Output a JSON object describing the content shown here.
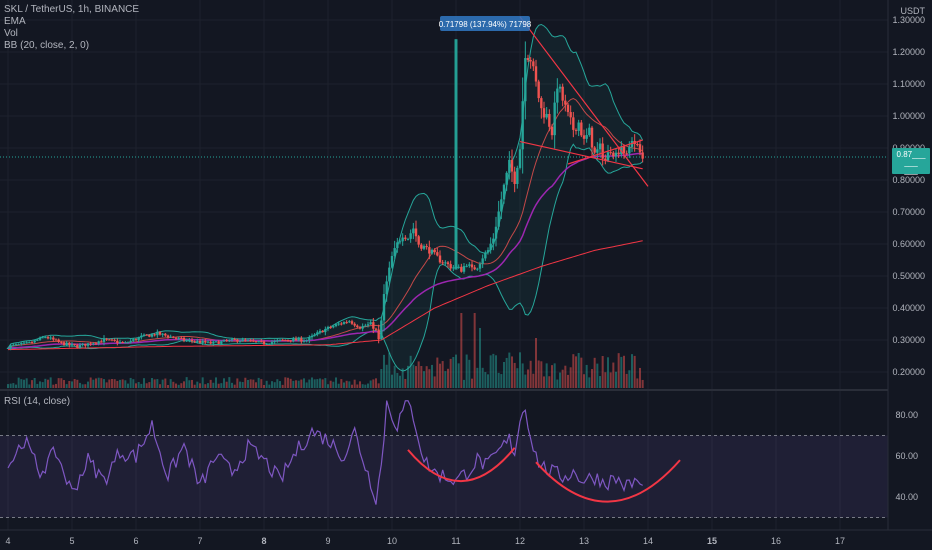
{
  "legend": {
    "title": "SKL / TetherUS, 1h, BINANCE",
    "ema": "EMA",
    "vol": "Vol",
    "bb": "BB (20, close, 2, 0)"
  },
  "rsi_legend": "RSI (14, close)",
  "price_axis": {
    "unit": "USDT",
    "ticks": [
      {
        "v": 1.3,
        "label": "1.30000"
      },
      {
        "v": 1.2,
        "label": "1.20000"
      },
      {
        "v": 1.1,
        "label": "1.10000"
      },
      {
        "v": 1.0,
        "label": "1.00000"
      },
      {
        "v": 0.9,
        "label": "0.90000"
      },
      {
        "v": 0.8,
        "label": "0.80000"
      },
      {
        "v": 0.7,
        "label": "0.70000"
      },
      {
        "v": 0.6,
        "label": "0.60000"
      },
      {
        "v": 0.5,
        "label": "0.50000"
      },
      {
        "v": 0.4,
        "label": "0.40000"
      },
      {
        "v": 0.3,
        "label": "0.30000"
      },
      {
        "v": 0.2,
        "label": "0.20000"
      }
    ],
    "current_price": 0.872,
    "current_tag_lines": [
      "0.87___",
      "___",
      "___"
    ],
    "colors": {
      "tag": "#26a69a"
    }
  },
  "rsi_axis": {
    "ticks": [
      {
        "v": 80,
        "label": "80.00"
      },
      {
        "v": 60,
        "label": "60.00"
      },
      {
        "v": 40,
        "label": "40.00"
      }
    ],
    "upper_band": 70,
    "lower_band": 30
  },
  "time_axis": {
    "labels": [
      {
        "t": 0,
        "label": "4",
        "bold": false
      },
      {
        "t": 24,
        "label": "5",
        "bold": false
      },
      {
        "t": 48,
        "label": "6",
        "bold": false
      },
      {
        "t": 72,
        "label": "7",
        "bold": false
      },
      {
        "t": 96,
        "label": "8",
        "bold": true
      },
      {
        "t": 120,
        "label": "9",
        "bold": false
      },
      {
        "t": 144,
        "label": "10",
        "bold": false
      },
      {
        "t": 168,
        "label": "11",
        "bold": false
      },
      {
        "t": 192,
        "label": "12",
        "bold": false
      },
      {
        "t": 216,
        "label": "13",
        "bold": false
      },
      {
        "t": 240,
        "label": "14",
        "bold": false
      },
      {
        "t": 264,
        "label": "15",
        "bold": true
      },
      {
        "t": 288,
        "label": "16",
        "bold": false
      },
      {
        "t": 312,
        "label": "17",
        "bold": false
      }
    ]
  },
  "measure_label": "0.71798 (137.94%) 71798",
  "colors": {
    "up": "#26a69a",
    "down": "#ef5350",
    "bb": "#26a69a",
    "bb_mid": "#ef5350",
    "ema": "#9c27b0",
    "ema_long": "#f23645",
    "rsi": "#7e57c2",
    "drawing": "#f23645",
    "measure": "#2962ff"
  },
  "chart_data": {
    "type": "candlestick",
    "title": "SKL / TetherUS, 1h, BINANCE",
    "x_unit": "hours since Jul 4 00:00 (1h candles)",
    "ylim": [
      0.15,
      1.35
    ],
    "anchors": {
      "t": [
        0,
        8,
        14,
        20,
        26,
        36,
        44,
        50,
        56,
        66,
        76,
        86,
        96,
        104,
        112,
        118,
        124,
        128,
        132,
        136,
        138,
        139,
        140,
        141,
        142,
        143,
        144,
        146,
        148,
        150,
        152,
        154,
        158,
        162,
        166,
        170,
        172,
        174,
        176,
        178,
        180,
        182,
        184,
        186,
        188,
        190,
        192,
        193,
        194,
        196,
        198,
        200,
        202,
        204,
        206,
        208,
        210,
        212,
        214,
        216,
        218,
        220,
        222,
        224,
        226,
        228,
        230,
        232,
        234,
        236,
        238
      ],
      "close": [
        0.28,
        0.29,
        0.31,
        0.29,
        0.28,
        0.3,
        0.29,
        0.31,
        0.32,
        0.3,
        0.29,
        0.3,
        0.29,
        0.3,
        0.3,
        0.33,
        0.35,
        0.36,
        0.34,
        0.35,
        0.33,
        0.3,
        0.36,
        0.44,
        0.48,
        0.52,
        0.56,
        0.6,
        0.63,
        0.62,
        0.65,
        0.6,
        0.58,
        0.55,
        0.53,
        0.52,
        0.54,
        0.52,
        0.53,
        0.56,
        0.58,
        0.62,
        0.7,
        0.78,
        0.85,
        0.8,
        0.9,
        1.05,
        1.2,
        1.18,
        1.1,
        1.02,
        1.0,
        0.95,
        1.1,
        1.05,
        1.0,
        0.96,
        0.98,
        0.92,
        0.95,
        0.88,
        0.9,
        0.86,
        0.9,
        0.88,
        0.91,
        0.87,
        0.93,
        0.9,
        0.87
      ]
    },
    "spike": {
      "t": 168,
      "high": 1.24
    },
    "ema_long_anchors": {
      "t": [
        0,
        60,
        120,
        140,
        160,
        180,
        200,
        220,
        238
      ],
      "v": [
        0.27,
        0.28,
        0.285,
        0.3,
        0.4,
        0.47,
        0.53,
        0.58,
        0.61
      ]
    },
    "volume": {
      "note": "relative volume bars, higher after hour 140"
    },
    "rsi": {
      "anchors": {
        "t": [
          0,
          6,
          12,
          18,
          24,
          30,
          36,
          42,
          48,
          54,
          60,
          66,
          72,
          78,
          84,
          90,
          96,
          102,
          108,
          114,
          120,
          126,
          130,
          134,
          138,
          140,
          142,
          144,
          146,
          148,
          150,
          152,
          156,
          160,
          164,
          168,
          172,
          176,
          180,
          184,
          188,
          190,
          192,
          194,
          196,
          198,
          200,
          204,
          208,
          212,
          216,
          220,
          224,
          228,
          232,
          236,
          238
        ],
        "v": [
          55,
          68,
          52,
          62,
          42,
          58,
          48,
          62,
          60,
          75,
          50,
          65,
          45,
          60,
          52,
          64,
          58,
          48,
          62,
          72,
          68,
          60,
          72,
          55,
          40,
          55,
          86,
          80,
          75,
          82,
          85,
          80,
          58,
          52,
          50,
          48,
          52,
          58,
          55,
          62,
          68,
          62,
          78,
          84,
          70,
          60,
          55,
          52,
          50,
          52,
          48,
          50,
          47,
          49,
          45,
          48,
          44
        ]
      },
      "bands": [
        70,
        30
      ]
    },
    "annotations": [
      "descending resistance line",
      "support line",
      "two rounded-bottom arcs on RSI",
      "vertical price-range measurement"
    ]
  }
}
